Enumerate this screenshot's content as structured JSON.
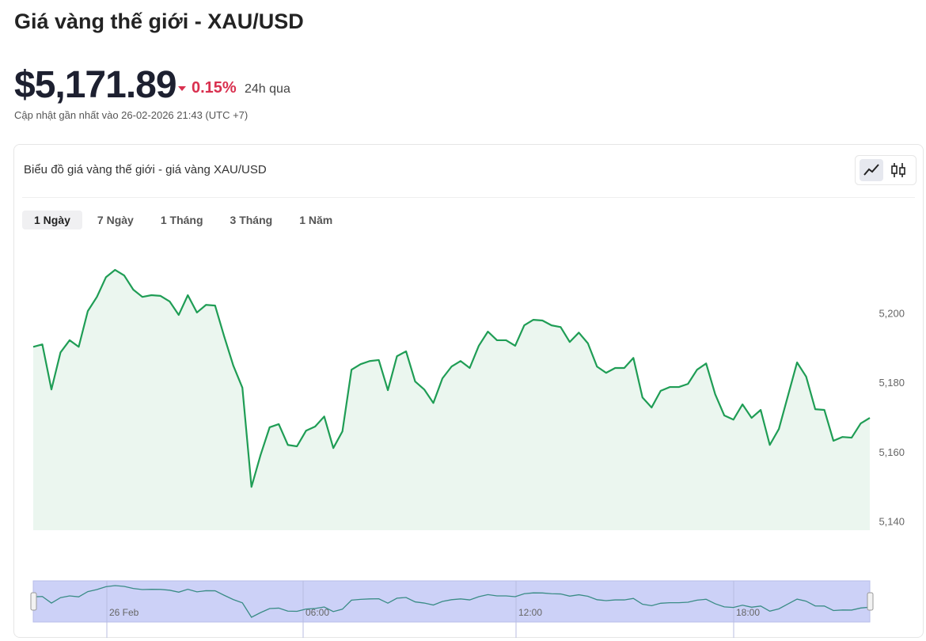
{
  "header": {
    "title": "Giá vàng thế giới - XAU/USD",
    "price": "$5,171.89",
    "change": "0.15%",
    "period": "24h qua",
    "updated": "Cập nhật gần nhất vào 26-02-2026 21:43 (UTC +7)"
  },
  "tabs": [
    "1 Ngày",
    "7 Ngày",
    "1 Tháng",
    "3 Tháng",
    "1 Năm"
  ],
  "chart_data": {
    "type": "line",
    "title": "Biểu đồ giá vàng thế giới - giá vàng XAU/USD",
    "color": "#1f9d55",
    "values": [
      5190.6,
      5191.3,
      5178.3,
      5189.0,
      5192.5,
      5190.6,
      5200.9,
      5205.0,
      5210.7,
      5212.8,
      5211.2,
      5207.1,
      5205.0,
      5205.5,
      5205.3,
      5203.7,
      5199.8,
      5205.5,
      5200.5,
      5202.7,
      5202.5,
      5193.6,
      5185.2,
      5178.8,
      5150.2,
      5159.4,
      5167.4,
      5168.3,
      5162.3,
      5161.9,
      5166.4,
      5167.6,
      5170.5,
      5161.4,
      5166.2,
      5184.0,
      5185.6,
      5186.5,
      5186.8,
      5178.1,
      5187.9,
      5189.3,
      5180.6,
      5178.3,
      5174.4,
      5181.5,
      5184.9,
      5186.5,
      5184.5,
      5190.9,
      5195.0,
      5192.5,
      5192.5,
      5190.9,
      5196.8,
      5198.4,
      5198.2,
      5196.8,
      5196.3,
      5192.0,
      5194.7,
      5191.6,
      5184.9,
      5183.1,
      5184.5,
      5184.5,
      5187.4,
      5176.0,
      5173.1,
      5177.9,
      5179.0,
      5179.0,
      5179.9,
      5184.0,
      5185.8,
      5176.9,
      5170.8,
      5169.6,
      5174.0,
      5170.1,
      5172.4,
      5162.3,
      5166.9,
      5176.5,
      5186.1,
      5182.0,
      5172.6,
      5172.4,
      5163.5,
      5164.6,
      5164.4,
      5168.5,
      5170.1
    ],
    "ylim": [
      5137.7,
      5217.6
    ],
    "yticks": [
      {
        "value": 5140,
        "label": "5,140"
      },
      {
        "value": 5160,
        "label": "5,160"
      },
      {
        "value": 5180,
        "label": "5,180"
      },
      {
        "value": 5200,
        "label": "5,200"
      }
    ],
    "navigator_labels": [
      "26 Feb",
      "06:00",
      "12:00",
      "18:00"
    ]
  }
}
